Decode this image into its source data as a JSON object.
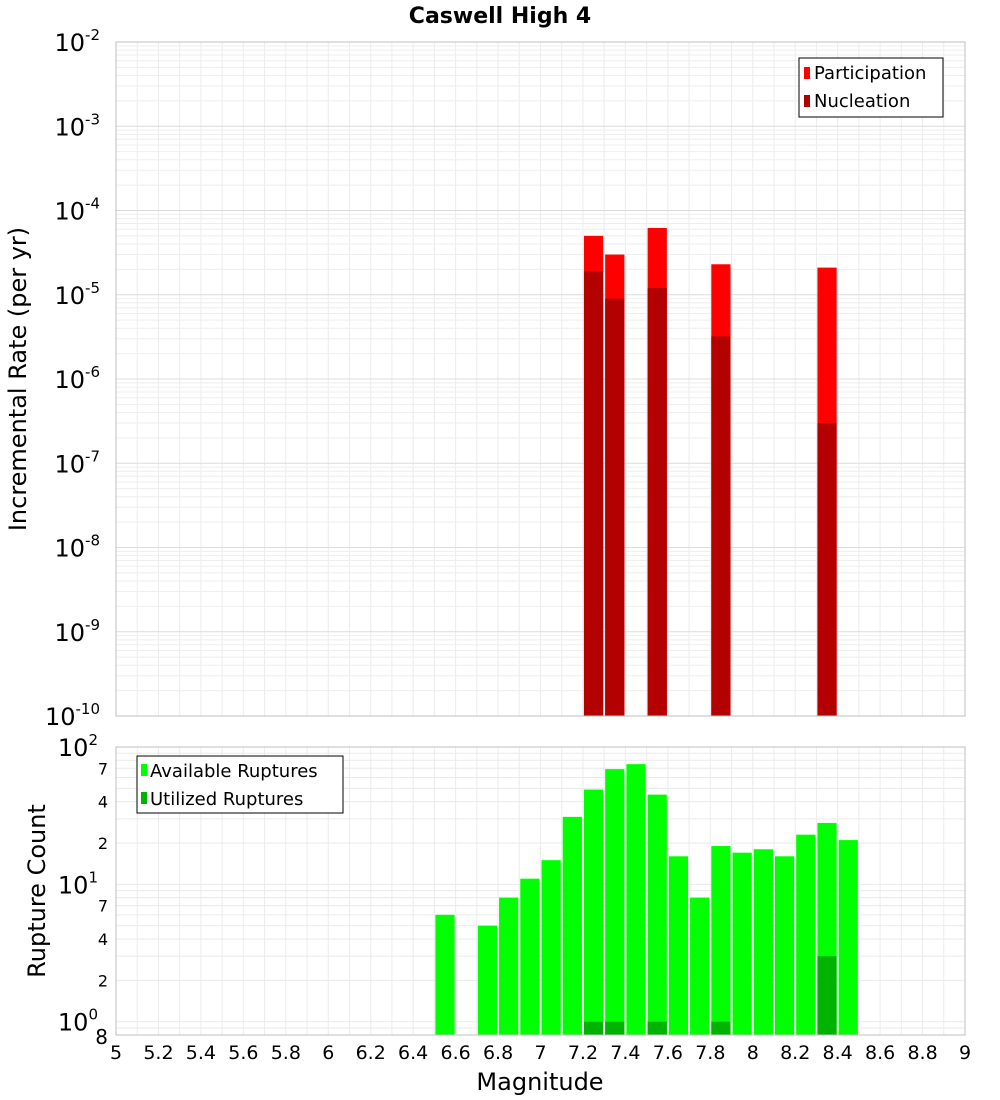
{
  "title": "Caswell High 4",
  "colors": {
    "participation": "#ff0000",
    "nucleation": "#b30000",
    "available": "#00ff00",
    "utilized": "#00b300",
    "grid": "#e8e8e8",
    "axis": "#bfbfbf"
  },
  "chart_data": [
    {
      "type": "bar",
      "panel": "rate",
      "title": "Caswell High 4",
      "xlabel": "",
      "ylabel": "Incremental Rate (per yr)",
      "yscale": "log",
      "ylim": [
        1e-10,
        0.01
      ],
      "xlim": [
        5,
        9
      ],
      "bar_width": 0.1,
      "y_ticks": [
        {
          "value": 1e-10,
          "base": "10",
          "exp": "-10"
        },
        {
          "value": 1e-09,
          "base": "10",
          "exp": "-9"
        },
        {
          "value": 1e-08,
          "base": "10",
          "exp": "-8"
        },
        {
          "value": 1e-07,
          "base": "10",
          "exp": "-7"
        },
        {
          "value": 1e-06,
          "base": "10",
          "exp": "-6"
        },
        {
          "value": 1e-05,
          "base": "10",
          "exp": "-5"
        },
        {
          "value": 0.0001,
          "base": "10",
          "exp": "-4"
        },
        {
          "value": 0.001,
          "base": "10",
          "exp": "-3"
        },
        {
          "value": 0.01,
          "base": "10",
          "exp": "-2"
        }
      ],
      "legend": {
        "position": "top-right",
        "entries": [
          "Participation",
          "Nucleation"
        ]
      },
      "series": [
        {
          "name": "Participation",
          "x": [
            7.25,
            7.35,
            7.55,
            7.85,
            8.35
          ],
          "values": [
            5e-05,
            3e-05,
            6.2e-05,
            2.3e-05,
            2.1e-05
          ]
        },
        {
          "name": "Nucleation",
          "x": [
            7.25,
            7.35,
            7.55,
            7.85,
            8.35
          ],
          "values": [
            1.9e-05,
            9e-06,
            1.2e-05,
            3.2e-06,
            3e-07
          ]
        }
      ]
    },
    {
      "type": "bar",
      "panel": "count",
      "xlabel": "Magnitude",
      "ylabel": "Rupture Count",
      "yscale": "log",
      "ylim": [
        0.8,
        100
      ],
      "xlim": [
        5,
        9
      ],
      "bar_width": 0.1,
      "x_ticks": [
        "5",
        "5.2",
        "5.4",
        "5.6",
        "5.8",
        "6",
        "6.2",
        "6.4",
        "6.6",
        "6.8",
        "7",
        "7.2",
        "7.4",
        "7.6",
        "7.8",
        "8",
        "8.2",
        "8.4",
        "8.6",
        "8.8",
        "9"
      ],
      "y_major_ticks": [
        {
          "value": 1,
          "base": "10",
          "exp": "0"
        },
        {
          "value": 10,
          "base": "10",
          "exp": "1"
        },
        {
          "value": 100,
          "base": "10",
          "exp": "2"
        }
      ],
      "y_minor_ticks": [
        {
          "value": 0.8,
          "label": "8"
        },
        {
          "value": 2,
          "label": "2"
        },
        {
          "value": 4,
          "label": "4"
        },
        {
          "value": 7,
          "label": "7"
        },
        {
          "value": 20,
          "label": "2"
        },
        {
          "value": 40,
          "label": "4"
        },
        {
          "value": 70,
          "label": "7"
        }
      ],
      "legend": {
        "position": "top-left",
        "entries": [
          "Available Ruptures",
          "Utilized Ruptures"
        ]
      },
      "series": [
        {
          "name": "Available Ruptures",
          "x": [
            6.55,
            6.75,
            6.85,
            6.95,
            7.05,
            7.15,
            7.25,
            7.35,
            7.45,
            7.55,
            7.65,
            7.75,
            7.85,
            7.95,
            8.05,
            8.15,
            8.25,
            8.35,
            8.45
          ],
          "values": [
            6,
            5,
            8,
            11,
            15,
            31,
            49,
            69,
            75,
            45,
            16,
            8,
            19,
            17,
            18,
            16,
            23,
            28,
            21
          ]
        },
        {
          "name": "Utilized Ruptures",
          "x": [
            7.25,
            7.35,
            7.55,
            7.85,
            8.35
          ],
          "values": [
            1,
            1,
            1,
            1,
            3
          ]
        }
      ]
    }
  ]
}
